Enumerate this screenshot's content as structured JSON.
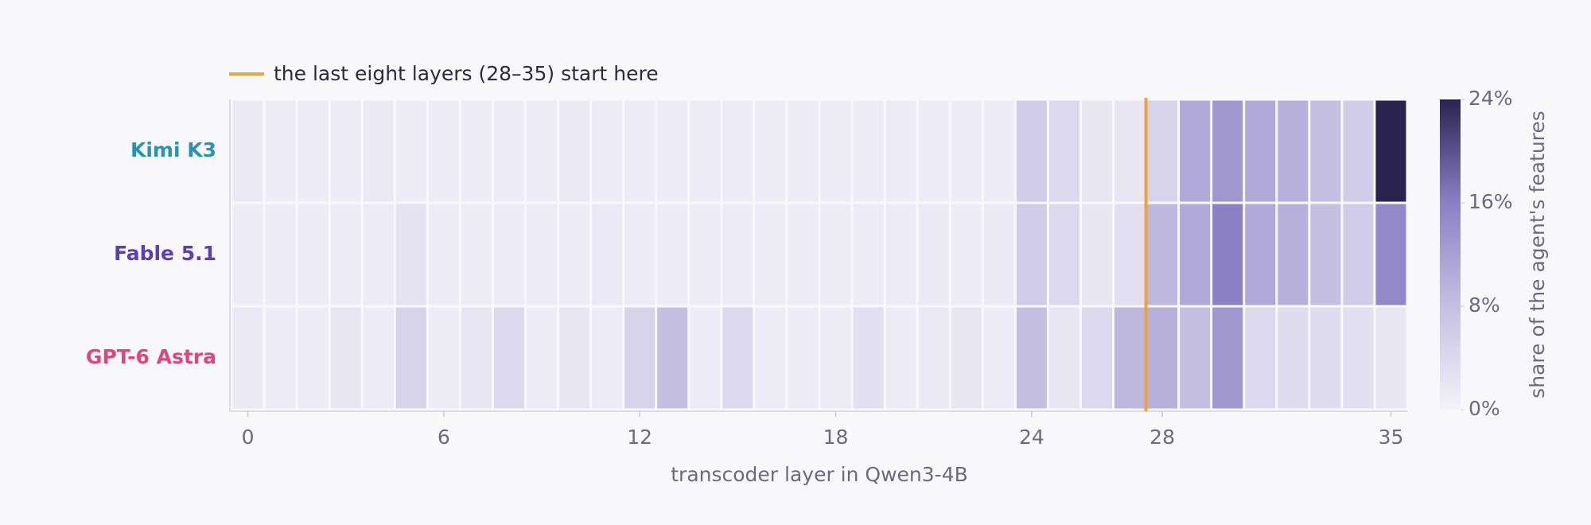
{
  "chart_data": {
    "type": "heatmap",
    "x": [
      0,
      1,
      2,
      3,
      4,
      5,
      6,
      7,
      8,
      9,
      10,
      11,
      12,
      13,
      14,
      15,
      16,
      17,
      18,
      19,
      20,
      21,
      22,
      23,
      24,
      25,
      26,
      27,
      28,
      29,
      30,
      31,
      32,
      33,
      34,
      35
    ],
    "xlim": [
      -0.5,
      35.5
    ],
    "xticks": [
      0,
      6,
      12,
      18,
      24,
      28,
      35
    ],
    "xlabel": "transcoder layer in Qwen3-4B",
    "series": [
      {
        "name": "Kimi K3",
        "color": "#2a92b8",
        "values": [
          1.5,
          1,
          1,
          1,
          1.5,
          1,
          1,
          1,
          1,
          1,
          1.5,
          1,
          1,
          1,
          1,
          1,
          1,
          1,
          1,
          1,
          1,
          1,
          1,
          1,
          6,
          4,
          2,
          2,
          5,
          11,
          13,
          11,
          10,
          8,
          6,
          24
        ]
      },
      {
        "name": "Fable 5.1",
        "color": "#5b3fb5",
        "values": [
          1,
          1,
          1,
          1,
          1,
          2.5,
          1,
          1,
          1,
          1,
          1,
          1.5,
          1,
          1,
          1,
          1,
          1,
          1,
          1,
          1,
          1,
          1.5,
          1,
          1.5,
          6,
          4,
          2,
          3,
          9,
          11,
          16,
          11,
          10,
          8,
          6,
          15
        ]
      },
      {
        "name": "GPT-6 Astra",
        "color": "#e0457f",
        "values": [
          1.5,
          1,
          1,
          2,
          1,
          5,
          1,
          2,
          4,
          1,
          2,
          1,
          5,
          8,
          1,
          4,
          1,
          1,
          1,
          3,
          1,
          1.5,
          2,
          1,
          8,
          2,
          4,
          9,
          10,
          8,
          13,
          4,
          3.5,
          3.5,
          3,
          2
        ]
      }
    ],
    "clim": [
      0,
      24
    ],
    "colorscale": [
      "#f3f2f9",
      "#c5c0e2",
      "#8c80c4",
      "#2a2350"
    ],
    "cticks": [
      {
        "value": 0,
        "label": "0%"
      },
      {
        "value": 8,
        "label": "8%"
      },
      {
        "value": 16,
        "label": "16%"
      },
      {
        "value": 24,
        "label": "24%"
      }
    ],
    "clabel": "share of the agent's features",
    "annotation": {
      "text": "the last eight layers (28–35) start here",
      "x": 28,
      "color": "#f0a23b"
    }
  }
}
